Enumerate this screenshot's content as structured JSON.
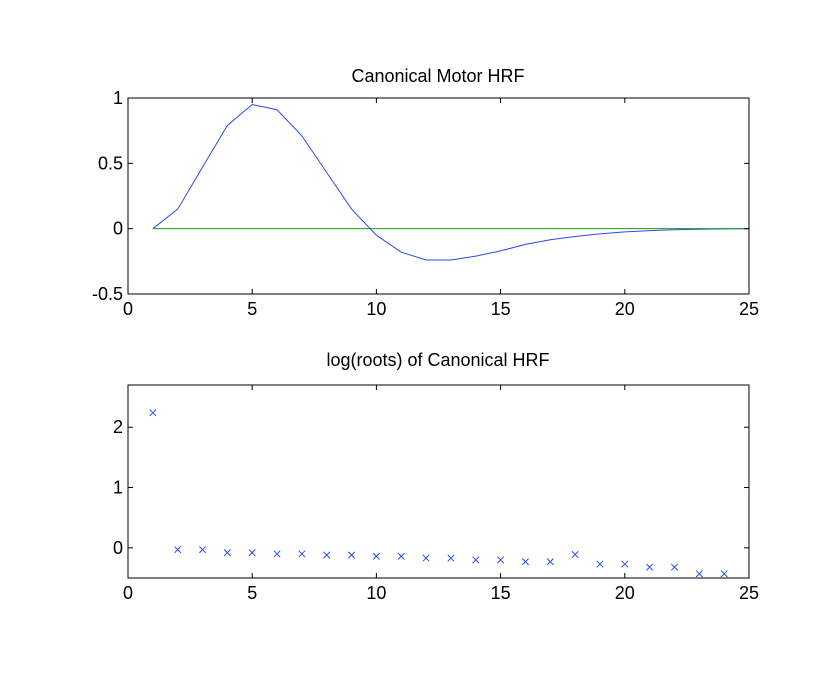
{
  "chart_data": [
    {
      "type": "line",
      "title": "Canonical Motor HRF",
      "xlabel": "",
      "ylabel": "",
      "xlim": [
        0,
        25
      ],
      "ylim": [
        -0.5,
        1
      ],
      "xticks": [
        "0",
        "5",
        "10",
        "15",
        "20",
        "25"
      ],
      "yticks": [
        "-0.5",
        "0",
        "0.5",
        "1"
      ],
      "grid": false,
      "series": [
        {
          "color": "#2b4bf0",
          "x": [
            1,
            2,
            3,
            4,
            5,
            6,
            7,
            8,
            9,
            10,
            11,
            12,
            13,
            14,
            15,
            16,
            17,
            18,
            19,
            20,
            21,
            22,
            23,
            24,
            25
          ],
          "y": [
            0.0,
            0.15,
            0.47,
            0.79,
            0.95,
            0.91,
            0.71,
            0.43,
            0.15,
            -0.05,
            -0.18,
            -0.24,
            -0.24,
            -0.21,
            -0.17,
            -0.12,
            -0.085,
            -0.06,
            -0.04,
            -0.025,
            -0.015,
            -0.008,
            -0.004,
            -0.002,
            -0.001
          ]
        },
        {
          "color": "#1a9a1a",
          "x": [
            1,
            25
          ],
          "y": [
            0,
            0
          ]
        }
      ]
    },
    {
      "type": "scatter",
      "title": "log(roots) of Canonical HRF",
      "xlabel": "",
      "ylabel": "",
      "xlim": [
        0,
        25
      ],
      "ylim": [
        -0.5,
        2.7
      ],
      "xticks": [
        "0",
        "5",
        "10",
        "15",
        "20",
        "25"
      ],
      "yticks": [
        "0",
        "1",
        "2"
      ],
      "grid": false,
      "marker": "x",
      "series": [
        {
          "color": "#2b4bf0",
          "x": [
            1,
            2,
            3,
            4,
            5,
            6,
            7,
            8,
            9,
            10,
            11,
            12,
            13,
            14,
            15,
            16,
            17,
            18,
            19,
            20,
            21,
            22,
            23,
            24
          ],
          "y": [
            2.24,
            -0.03,
            -0.03,
            -0.08,
            -0.08,
            -0.1,
            -0.1,
            -0.12,
            -0.12,
            -0.14,
            -0.14,
            -0.17,
            -0.17,
            -0.2,
            -0.2,
            -0.23,
            -0.23,
            -0.11,
            -0.27,
            -0.27,
            -0.32,
            -0.32,
            -0.43,
            -0.43
          ]
        }
      ]
    }
  ]
}
